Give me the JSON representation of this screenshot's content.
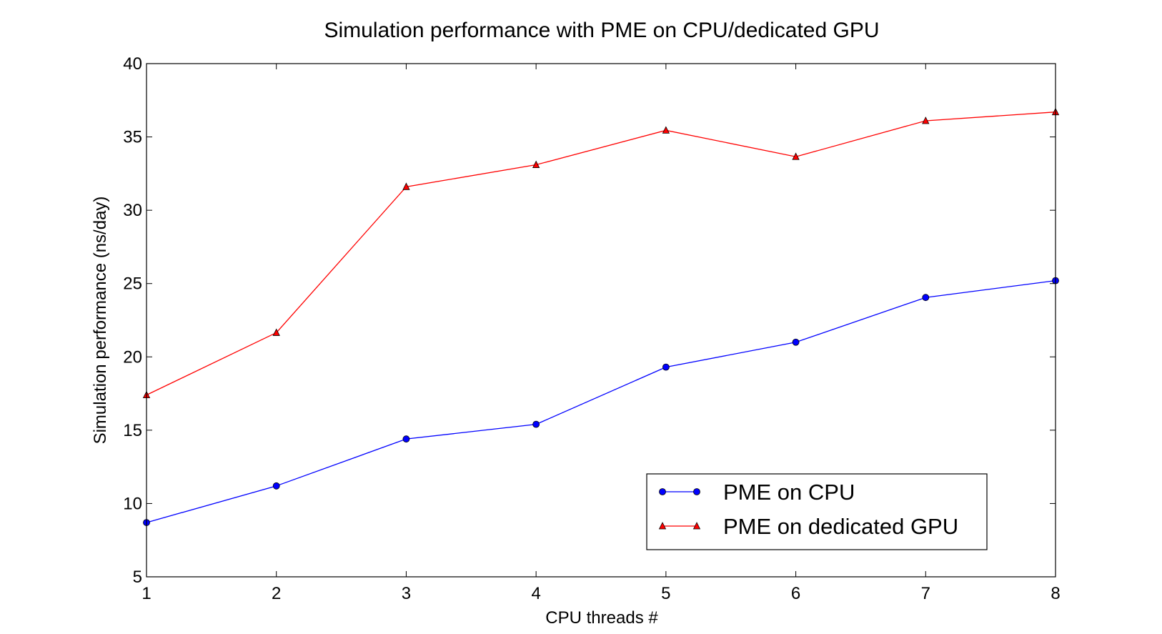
{
  "chart_data": {
    "type": "line",
    "title": "Simulation performance with PME on CPU/dedicated GPU",
    "xlabel": "CPU threads #",
    "ylabel": "Simulation performance (ns/day)",
    "x": [
      1,
      2,
      3,
      4,
      5,
      6,
      7,
      8
    ],
    "xlim": [
      1,
      8
    ],
    "ylim": [
      5,
      40
    ],
    "xticks": [
      1,
      2,
      3,
      4,
      5,
      6,
      7,
      8
    ],
    "yticks": [
      5,
      10,
      15,
      20,
      25,
      30,
      35,
      40
    ],
    "grid": false,
    "legend_position": "lower-right",
    "series": [
      {
        "name": "PME on CPU",
        "color": "#0000ff",
        "marker": "circle",
        "values": [
          8.7,
          11.2,
          14.4,
          15.4,
          19.3,
          21.0,
          24.05,
          25.2
        ]
      },
      {
        "name": "PME on dedicated GPU",
        "color": "#ff0000",
        "marker": "triangle",
        "values": [
          17.4,
          21.65,
          31.6,
          33.1,
          35.45,
          33.65,
          36.1,
          36.7
        ]
      }
    ]
  }
}
